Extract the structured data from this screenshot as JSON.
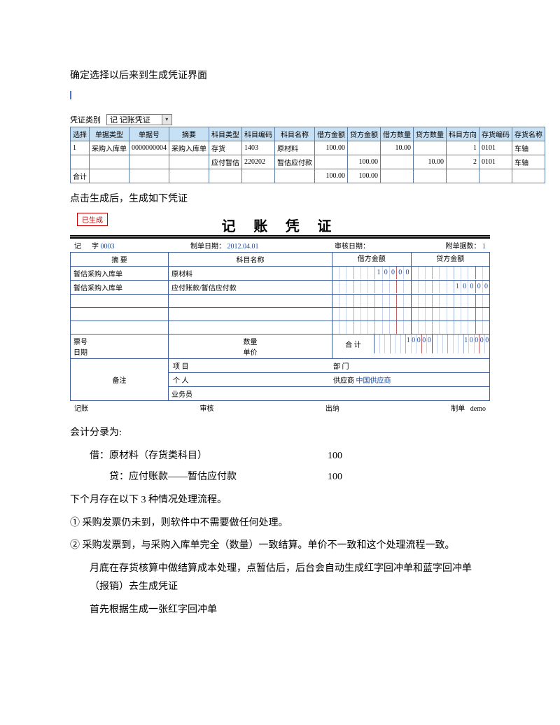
{
  "intro1": "确定选择以后来到生成凭证界面",
  "vtype": {
    "label": "凭证类别",
    "value": "记 记账凭证"
  },
  "grid1": {
    "headers": [
      "选择",
      "单据类型",
      "单据号",
      "摘要",
      "科目类型",
      "科目编码",
      "科目名称",
      "借方金额",
      "贷方金额",
      "借方数量",
      "贷方数量",
      "科目方向",
      "存货编码",
      "存货名称"
    ],
    "rows": [
      [
        "1",
        "采购入库单",
        "0000000004",
        "采购入库单",
        "存货",
        "1403",
        "原材料",
        "100.00",
        "",
        "10.00",
        "",
        "1",
        "0101",
        "车轴"
      ],
      [
        "",
        "",
        "",
        "",
        "应付暂估",
        "220202",
        "暂估应付款",
        "",
        "100.00",
        "",
        "10.00",
        "2",
        "0101",
        "车轴"
      ]
    ],
    "totalLabel": "合计",
    "totalDebit": "100.00",
    "totalCredit": "100.00"
  },
  "intro2": "点击生成后，生成如下凭证",
  "voucher": {
    "badge": "已生成",
    "title": "记 账 凭 证",
    "seqLabel": "记",
    "seqWord": "字",
    "seqNum": "0003",
    "makeDateLbl": "制单日期：",
    "makeDate": "2012.04.01",
    "auditDateLbl": "审核日期：",
    "attachLbl": "附单据数：",
    "attachNum": "1",
    "h_summary": "摘 要",
    "h_subject": "科目名称",
    "h_debit": "借方金额",
    "h_credit": "贷方金额",
    "lines": [
      {
        "summary": "暂估采购入库单",
        "subject": "原材料",
        "debit": "10000",
        "credit": ""
      },
      {
        "summary": "暂估采购入库单",
        "subject": "应付账款/暂估应付款",
        "debit": "",
        "credit": "10000"
      },
      {
        "summary": "",
        "subject": "",
        "debit": "",
        "credit": ""
      },
      {
        "summary": "",
        "subject": "",
        "debit": "",
        "credit": ""
      },
      {
        "summary": "",
        "subject": "",
        "debit": "",
        "credit": ""
      }
    ],
    "noteLbl": "票号\n日期",
    "qty": "数量\n单价",
    "subtotal": "合 计",
    "sumDebit": "10000",
    "sumCredit": "10000",
    "remarkLbl": "备注",
    "projLbl": "项 目",
    "deptLbl": "部 门",
    "personLbl": "个 人",
    "supplierLbl": "供应商",
    "supplier": "中国供应商",
    "clerkLbl": "业务员",
    "footer": {
      "book": "记账",
      "audit": "审核",
      "cashier": "出纳",
      "make": "制单",
      "maker": "demo"
    }
  },
  "entryHeader": "会计分录为:",
  "entry": {
    "debitLabel": "借：原材料（存货类科目）",
    "debitVal": "100",
    "creditLabel": "贷：应付账款——暂估应付款",
    "creditVal": "100"
  },
  "next": "下个月存在以下 3 种情况处理流程。",
  "p1": "① 采购发票仍未到，则软件中不需要做任何处理。",
  "p2a": "② 采购发票到，与采购入库单完全（数量）一致结算。单价不一致和这个处理流程一致。",
  "p2b": "月底在存货核算中做结算成本处理，点暂估后，后台会自动生成红字回冲单和蓝字回冲单（报销）去生成凭证",
  "p2c": "首先根据生成一张红字回冲单",
  "colors": {
    "border": "#5b7ca3",
    "headerbg": "#c7e0f4",
    "num": "#1a4aa8"
  }
}
